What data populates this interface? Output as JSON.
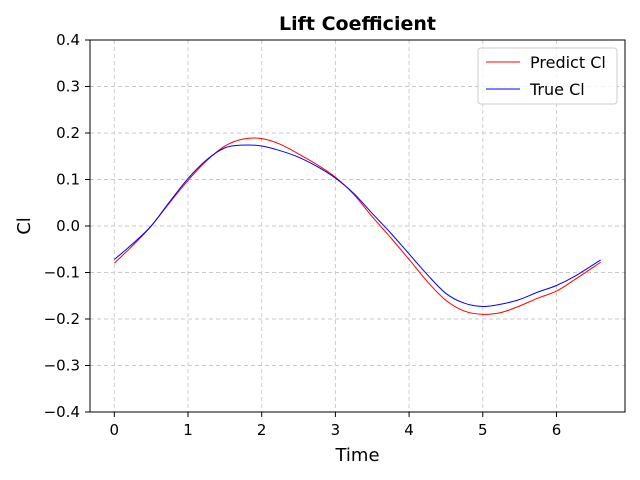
{
  "chart_data": {
    "type": "line",
    "title": "Lift Coefficient",
    "xlabel": "Time",
    "ylabel": "Cl",
    "xlim": [
      -0.33,
      6.93
    ],
    "ylim": [
      -0.4,
      0.4
    ],
    "xticks": [
      "0",
      "1",
      "2",
      "3",
      "4",
      "5",
      "6"
    ],
    "yticks": [
      "0.4",
      "0.3",
      "0.2",
      "0.1",
      "0.0",
      "−0.1",
      "−0.2",
      "−0.3",
      "−0.4"
    ],
    "grid": true,
    "legend_position": "top-right",
    "series": [
      {
        "name": "Predict Cl",
        "color": "#ff0000",
        "x": [
          0,
          0.25,
          0.5,
          0.75,
          1.0,
          1.25,
          1.5,
          1.75,
          2.0,
          2.25,
          2.5,
          2.75,
          3.0,
          3.25,
          3.5,
          3.75,
          4.0,
          4.25,
          4.5,
          4.75,
          5.0,
          5.25,
          5.5,
          5.75,
          6.0,
          6.25,
          6.6
        ],
        "values": [
          -0.08,
          -0.042,
          0.0,
          0.05,
          0.098,
          0.14,
          0.172,
          0.187,
          0.188,
          0.176,
          0.155,
          0.132,
          0.105,
          0.068,
          0.02,
          -0.025,
          -0.072,
          -0.12,
          -0.16,
          -0.183,
          -0.19,
          -0.186,
          -0.172,
          -0.155,
          -0.14,
          -0.115,
          -0.078
        ]
      },
      {
        "name": "True Cl",
        "color": "#0000ff",
        "x": [
          0,
          0.25,
          0.5,
          0.75,
          1.0,
          1.25,
          1.5,
          1.75,
          2.0,
          2.25,
          2.5,
          2.75,
          3.0,
          3.25,
          3.5,
          3.75,
          4.0,
          4.25,
          4.5,
          4.75,
          5.0,
          5.25,
          5.5,
          5.75,
          6.0,
          6.25,
          6.6
        ],
        "values": [
          -0.072,
          -0.038,
          0.0,
          0.052,
          0.102,
          0.142,
          0.168,
          0.174,
          0.172,
          0.162,
          0.148,
          0.128,
          0.103,
          0.07,
          0.027,
          -0.015,
          -0.06,
          -0.105,
          -0.145,
          -0.166,
          -0.173,
          -0.168,
          -0.158,
          -0.142,
          -0.128,
          -0.108,
          -0.073
        ]
      }
    ]
  }
}
